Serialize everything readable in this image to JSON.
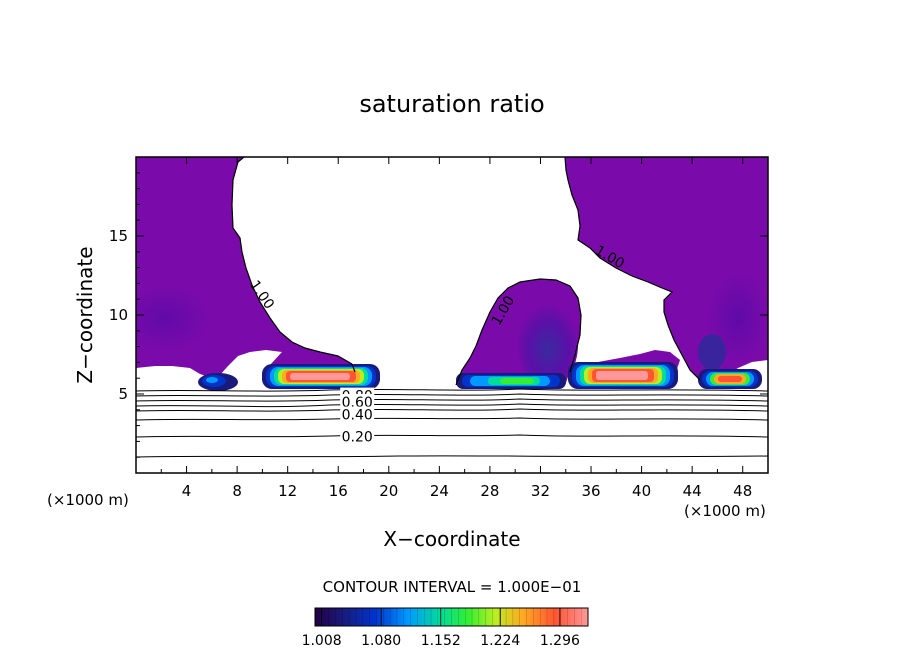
{
  "chart_data": {
    "type": "contour",
    "title": "saturation ratio",
    "xlabel": "X−coordinate",
    "ylabel": "Z−coordinate",
    "x_unit": "(×1000 m)",
    "z_unit": "(×1000 m)",
    "xlim": [
      0,
      50
    ],
    "ylim": [
      0,
      20
    ],
    "x_ticks": [
      4,
      8,
      12,
      16,
      20,
      24,
      28,
      32,
      36,
      40,
      44,
      48
    ],
    "y_ticks": [
      5,
      10,
      15
    ],
    "contour_interval_text": "CONTOUR INTERVAL = 1.000E−01",
    "colorbar": {
      "min": 1.0,
      "max": 1.33,
      "ticks": [
        1.008,
        1.08,
        1.152,
        1.224,
        1.296
      ],
      "tick_labels": [
        "1.008",
        "1.080",
        "1.152",
        "1.224",
        "1.296"
      ],
      "colors": [
        "#220044",
        "#1a1a7a",
        "#0033cc",
        "#0099ff",
        "#00dd99",
        "#33ee33",
        "#bbee22",
        "#ffaa22",
        "#ff5533",
        "#ff9999"
      ]
    },
    "contour_labels": [
      {
        "text": "1.00",
        "x": 10.0,
        "z": 11.3
      },
      {
        "text": "1.00",
        "x": 29.0,
        "z": 10.3
      },
      {
        "text": "1.00",
        "x": 37.5,
        "z": 13.7
      },
      {
        "text": "0.80",
        "x": 17.5,
        "z": 4.9
      },
      {
        "text": "0.60",
        "x": 17.5,
        "z": 4.5
      },
      {
        "text": "0.40",
        "x": 17.5,
        "z": 3.7
      },
      {
        "text": "0.20",
        "x": 17.5,
        "z": 2.3
      }
    ],
    "contour_levels": [
      0.2,
      0.4,
      0.6,
      0.8,
      1.0
    ],
    "supersaturated_cores": [
      {
        "x": 6.3,
        "z": 5.8,
        "peak": 1.12
      },
      {
        "x": 14.5,
        "z": 6.0,
        "peak": 1.3
      },
      {
        "x": 29.0,
        "z": 5.8,
        "peak": 1.15
      },
      {
        "x": 38.5,
        "z": 6.2,
        "peak": 1.3
      },
      {
        "x": 46.0,
        "z": 5.9,
        "peak": 1.26
      }
    ]
  }
}
